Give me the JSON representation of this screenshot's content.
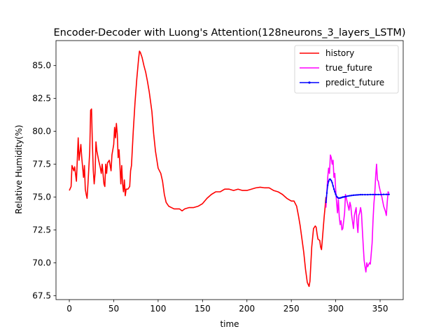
{
  "chart_data": {
    "type": "line",
    "title": "Encoder-Decoder with Luong's Attention(128neurons_3_layers_LSTM)",
    "xlabel": "time",
    "ylabel": "Relative Humidity(%)",
    "xlim": [
      -15,
      376
    ],
    "ylim": [
      67.2,
      86.9
    ],
    "xticks": [
      0,
      50,
      100,
      150,
      200,
      250,
      300,
      350
    ],
    "yticks": [
      67.5,
      70.0,
      72.5,
      75.0,
      77.5,
      80.0,
      82.5,
      85.0
    ],
    "xtick_labels": [
      "0",
      "50",
      "100",
      "150",
      "200",
      "250",
      "300",
      "350"
    ],
    "ytick_labels": [
      "67.5",
      "70.0",
      "72.5",
      "75.0",
      "77.5",
      "80.0",
      "82.5",
      "85.0"
    ],
    "grid": false,
    "legend_position": "top-right",
    "series": [
      {
        "name": "history",
        "color": "#ff0000",
        "marker": "none",
        "points": [
          [
            0,
            75.5
          ],
          [
            2,
            75.8
          ],
          [
            3,
            77.4
          ],
          [
            5,
            77.0
          ],
          [
            6,
            77.3
          ],
          [
            8,
            76.2
          ],
          [
            10,
            79.5
          ],
          [
            11,
            77.8
          ],
          [
            13,
            79.0
          ],
          [
            14,
            78.0
          ],
          [
            16,
            76.5
          ],
          [
            17,
            77.4
          ],
          [
            18,
            75.6
          ],
          [
            19,
            75.2
          ],
          [
            20,
            74.9
          ],
          [
            21,
            76.0
          ],
          [
            23,
            78.5
          ],
          [
            24,
            81.6
          ],
          [
            25,
            81.7
          ],
          [
            26,
            79.0
          ],
          [
            27,
            77.0
          ],
          [
            28,
            76.0
          ],
          [
            29,
            76.8
          ],
          [
            30,
            79.2
          ],
          [
            31,
            78.5
          ],
          [
            33,
            77.8
          ],
          [
            35,
            77.2
          ],
          [
            36,
            76.8
          ],
          [
            37,
            77.5
          ],
          [
            39,
            76.0
          ],
          [
            40,
            75.8
          ],
          [
            41,
            77.5
          ],
          [
            42,
            76.8
          ],
          [
            43,
            77.6
          ],
          [
            45,
            77.8
          ],
          [
            47,
            77.0
          ],
          [
            48,
            78.2
          ],
          [
            50,
            79.0
          ],
          [
            51,
            80.3
          ],
          [
            52,
            79.5
          ],
          [
            53,
            80.6
          ],
          [
            54,
            79.8
          ],
          [
            55,
            78.0
          ],
          [
            56,
            78.6
          ],
          [
            57,
            77.4
          ],
          [
            58,
            76.0
          ],
          [
            59,
            77.4
          ],
          [
            60,
            76.0
          ],
          [
            61,
            75.4
          ],
          [
            62,
            76.3
          ],
          [
            63,
            75.1
          ],
          [
            64,
            75.6
          ],
          [
            66,
            75.6
          ],
          [
            68,
            75.8
          ],
          [
            69,
            77.0
          ],
          [
            70,
            77.4
          ],
          [
            72,
            80.0
          ],
          [
            74,
            82.2
          ],
          [
            76,
            84.0
          ],
          [
            78,
            85.5
          ],
          [
            79,
            86.1
          ],
          [
            80,
            86.0
          ],
          [
            82,
            85.6
          ],
          [
            84,
            85.0
          ],
          [
            86,
            84.5
          ],
          [
            88,
            83.8
          ],
          [
            90,
            83.0
          ],
          [
            93,
            81.5
          ],
          [
            95,
            79.8
          ],
          [
            97,
            78.5
          ],
          [
            100,
            77.2
          ],
          [
            103,
            76.8
          ],
          [
            105,
            76.2
          ],
          [
            107,
            75.2
          ],
          [
            109,
            74.6
          ],
          [
            112,
            74.3
          ],
          [
            115,
            74.2
          ],
          [
            118,
            74.1
          ],
          [
            121,
            74.1
          ],
          [
            124,
            74.1
          ],
          [
            127,
            73.95
          ],
          [
            130,
            74.1
          ],
          [
            135,
            74.2
          ],
          [
            140,
            74.2
          ],
          [
            145,
            74.3
          ],
          [
            150,
            74.5
          ],
          [
            155,
            74.9
          ],
          [
            160,
            75.2
          ],
          [
            165,
            75.4
          ],
          [
            170,
            75.4
          ],
          [
            175,
            75.6
          ],
          [
            180,
            75.6
          ],
          [
            185,
            75.5
          ],
          [
            190,
            75.6
          ],
          [
            195,
            75.5
          ],
          [
            200,
            75.5
          ],
          [
            205,
            75.6
          ],
          [
            210,
            75.7
          ],
          [
            215,
            75.75
          ],
          [
            220,
            75.7
          ],
          [
            225,
            75.7
          ],
          [
            230,
            75.5
          ],
          [
            235,
            75.4
          ],
          [
            240,
            75.2
          ],
          [
            245,
            74.9
          ],
          [
            250,
            74.7
          ],
          [
            253,
            74.7
          ],
          [
            256,
            74.3
          ],
          [
            258,
            73.6
          ],
          [
            260,
            72.8
          ],
          [
            262,
            71.8
          ],
          [
            264,
            70.8
          ],
          [
            266,
            69.5
          ],
          [
            268,
            68.5
          ],
          [
            270,
            68.2
          ],
          [
            271,
            68.6
          ],
          [
            273,
            71.2
          ],
          [
            275,
            72.6
          ],
          [
            277,
            72.8
          ],
          [
            278,
            72.7
          ],
          [
            279,
            72.2
          ],
          [
            280,
            71.8
          ],
          [
            282,
            71.7
          ],
          [
            283,
            71.2
          ],
          [
            284,
            71.0
          ],
          [
            285,
            71.8
          ],
          [
            287,
            73.5
          ],
          [
            288,
            74.2
          ],
          [
            289,
            75.0
          ]
        ]
      },
      {
        "name": "true_future",
        "color": "#ff00ff",
        "marker": "none",
        "points": [
          [
            289,
            74.2
          ],
          [
            291,
            76.5
          ],
          [
            292,
            77.2
          ],
          [
            293,
            76.8
          ],
          [
            294,
            78.2
          ],
          [
            295,
            78.0
          ],
          [
            296,
            77.5
          ],
          [
            297,
            77.8
          ],
          [
            298,
            76.5
          ],
          [
            299,
            76.8
          ],
          [
            300,
            75.5
          ],
          [
            301,
            74.6
          ],
          [
            302,
            73.8
          ],
          [
            303,
            74.8
          ],
          [
            304,
            73.5
          ],
          [
            305,
            72.9
          ],
          [
            306,
            73.2
          ],
          [
            307,
            72.5
          ],
          [
            308,
            72.6
          ],
          [
            310,
            73.8
          ],
          [
            311,
            75.2
          ],
          [
            313,
            74.6
          ],
          [
            315,
            74.0
          ],
          [
            316,
            74.6
          ],
          [
            317,
            74.3
          ],
          [
            318,
            73.6
          ],
          [
            320,
            72.6
          ],
          [
            321,
            73.6
          ],
          [
            323,
            74.2
          ],
          [
            324,
            73.0
          ],
          [
            325,
            72.3
          ],
          [
            326,
            73.6
          ],
          [
            327,
            73.8
          ],
          [
            328,
            74.2
          ],
          [
            329,
            73.8
          ],
          [
            330,
            72.5
          ],
          [
            331,
            71.3
          ],
          [
            332,
            70.2
          ],
          [
            333,
            69.7
          ],
          [
            334,
            69.3
          ],
          [
            335,
            70.0
          ],
          [
            336,
            69.7
          ],
          [
            338,
            70.0
          ],
          [
            339,
            69.9
          ],
          [
            340,
            70.7
          ],
          [
            341,
            71.5
          ],
          [
            342,
            73.2
          ],
          [
            343,
            74.5
          ],
          [
            344,
            75.3
          ],
          [
            345,
            76.6
          ],
          [
            346,
            77.5
          ],
          [
            347,
            76.3
          ],
          [
            348,
            76.2
          ],
          [
            349,
            75.8
          ],
          [
            350,
            75.5
          ],
          [
            352,
            75.0
          ],
          [
            354,
            74.3
          ],
          [
            356,
            73.9
          ],
          [
            357,
            73.6
          ],
          [
            358,
            74.6
          ],
          [
            359,
            75.4
          ],
          [
            360,
            75.3
          ]
        ]
      },
      {
        "name": "predict_future",
        "color": "#0000ff",
        "marker": "dot",
        "points": [
          [
            289,
            74.6
          ],
          [
            290,
            75.3
          ],
          [
            291,
            75.9
          ],
          [
            292,
            76.2
          ],
          [
            293,
            76.35
          ],
          [
            294,
            76.35
          ],
          [
            295,
            76.25
          ],
          [
            296,
            76.1
          ],
          [
            297,
            75.85
          ],
          [
            298,
            75.6
          ],
          [
            299,
            75.4
          ],
          [
            300,
            75.2
          ],
          [
            301,
            75.05
          ],
          [
            302,
            74.98
          ],
          [
            303,
            74.92
          ],
          [
            304,
            74.92
          ],
          [
            305,
            74.93
          ],
          [
            306,
            74.95
          ],
          [
            307,
            74.97
          ],
          [
            308,
            75.0
          ],
          [
            309,
            75.0
          ],
          [
            310,
            75.02
          ],
          [
            311,
            75.03
          ],
          [
            312,
            75.05
          ],
          [
            314,
            75.08
          ],
          [
            316,
            75.1
          ],
          [
            318,
            75.12
          ],
          [
            320,
            75.14
          ],
          [
            322,
            75.15
          ],
          [
            324,
            75.16
          ],
          [
            326,
            75.17
          ],
          [
            328,
            75.18
          ],
          [
            330,
            75.18
          ],
          [
            333,
            75.18
          ],
          [
            336,
            75.18
          ],
          [
            339,
            75.19
          ],
          [
            342,
            75.19
          ],
          [
            345,
            75.19
          ],
          [
            348,
            75.19
          ],
          [
            351,
            75.19
          ],
          [
            354,
            75.2
          ],
          [
            357,
            75.2
          ],
          [
            360,
            75.2
          ]
        ]
      }
    ]
  }
}
